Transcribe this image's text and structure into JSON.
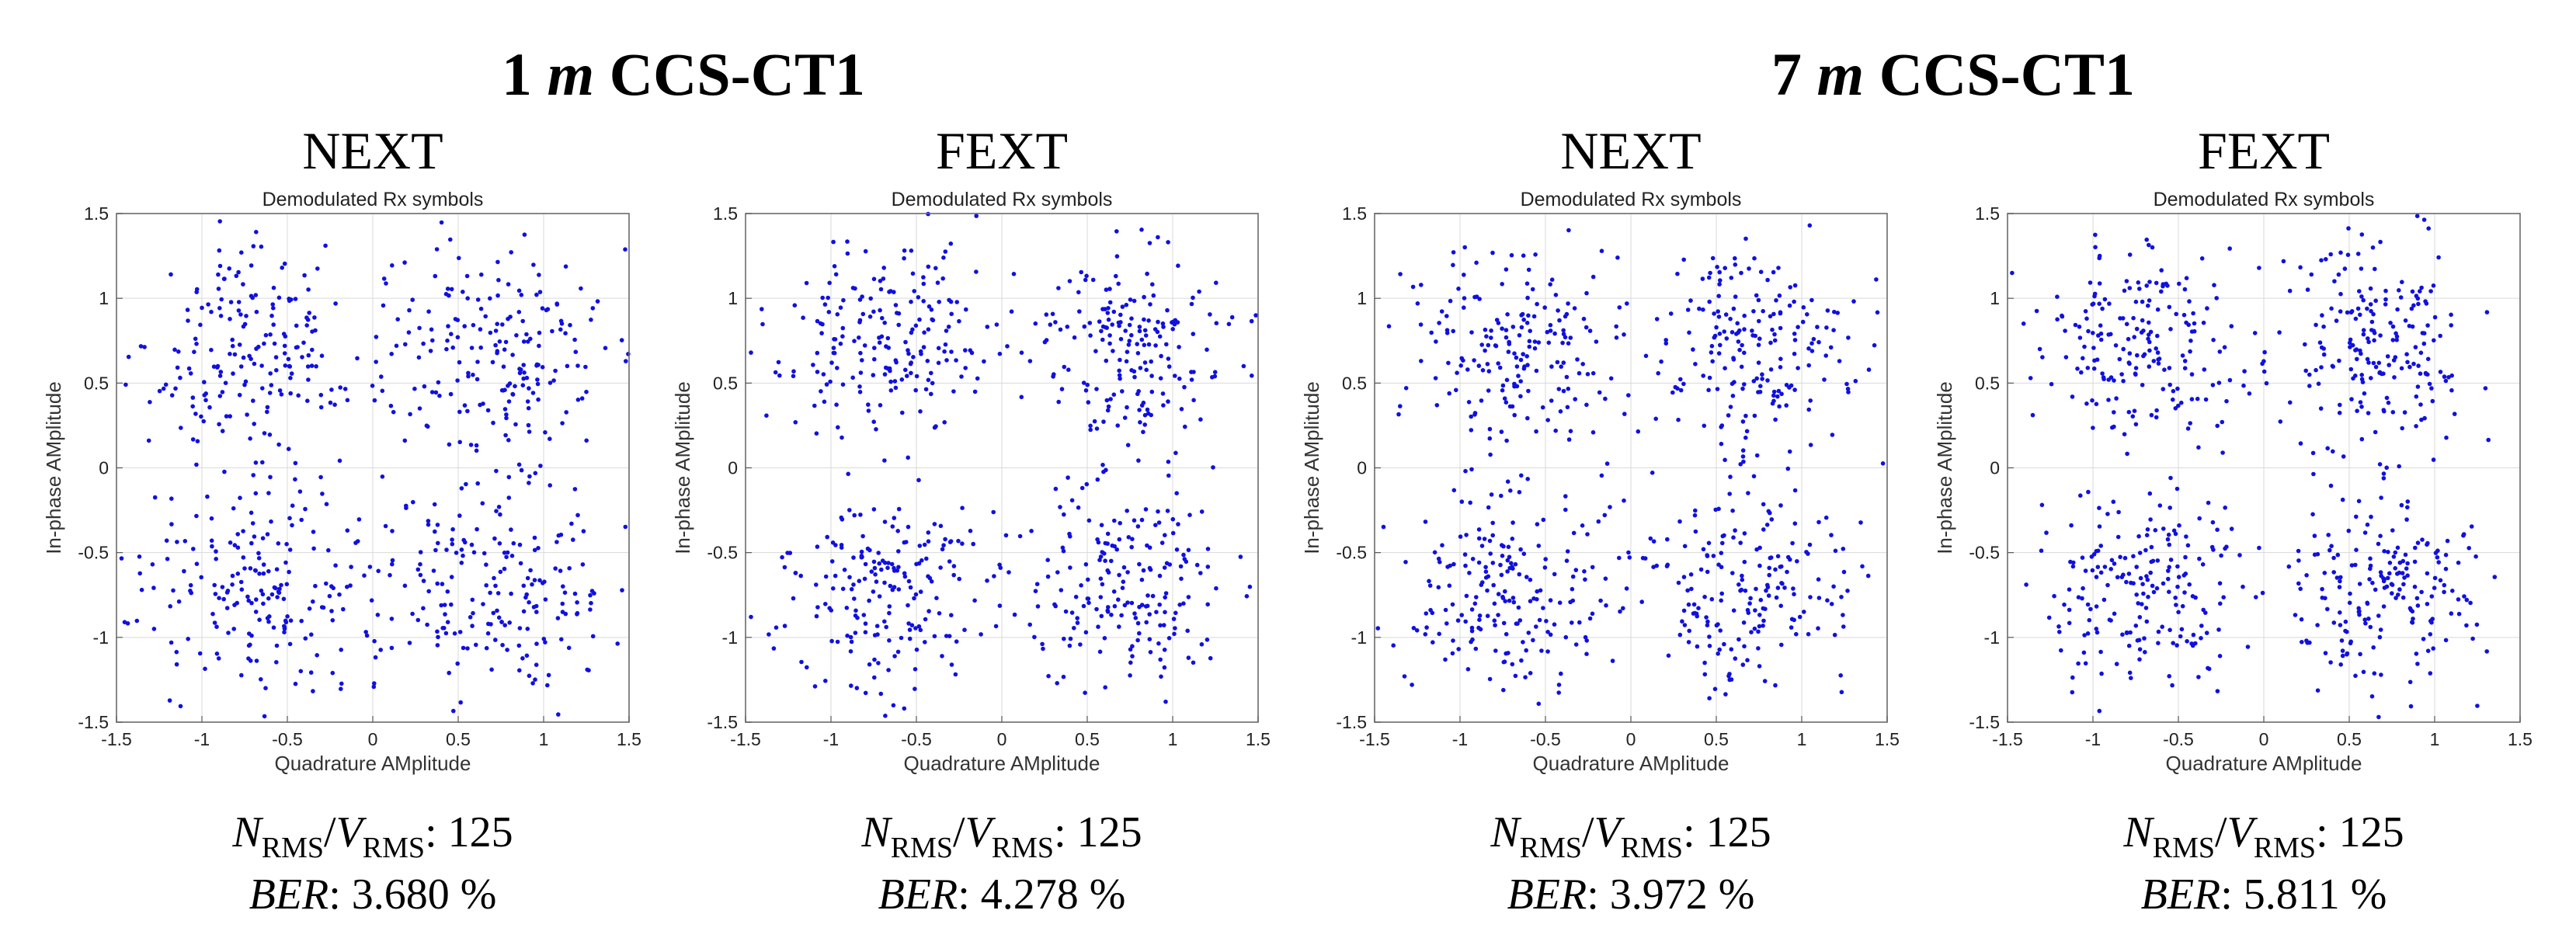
{
  "groups": [
    {
      "distance": "1",
      "unit": "m",
      "cable": "CCS-CT1"
    },
    {
      "distance": "7",
      "unit": "m",
      "cable": "CCS-CT1"
    }
  ],
  "stats_labels": {
    "n": "N",
    "v": "V",
    "sub": "RMS",
    "ber": "BER"
  },
  "colors": {
    "points": "#1010e0",
    "frame": "#6b6b6b",
    "grid": "#d9d9d9"
  },
  "chart_data": [
    {
      "type": "scatter",
      "group": "1 m CCS-CT1",
      "panel": "NEXT",
      "title": "Demodulated Rx symbols",
      "xlabel": "Quadrature AMplitude",
      "ylabel": "In-phase AMplitude",
      "xlim": [
        -1.5,
        1.5
      ],
      "ylim": [
        -1.5,
        1.5
      ],
      "xticks": [
        "-1.5",
        "-1",
        "-0.5",
        "0",
        "0.5",
        "1",
        "1.5"
      ],
      "yticks": [
        "1.5",
        "1",
        "0.5",
        "0",
        "-0.5",
        "-1",
        "-1.5"
      ],
      "grid": true,
      "clusters": [
        [
          -0.707,
          0.707
        ],
        [
          0.707,
          0.707
        ],
        [
          -0.707,
          -0.707
        ],
        [
          0.707,
          -0.707
        ]
      ],
      "spread": 0.33,
      "count": 800,
      "seed": 11,
      "nrms_vrms": "125",
      "ber": "3.680 %"
    },
    {
      "type": "scatter",
      "group": "1 m CCS-CT1",
      "panel": "FEXT",
      "title": "Demodulated Rx symbols",
      "xlabel": "Quadrature AMplitude",
      "ylabel": "In-phase AMplitude",
      "xlim": [
        -1.5,
        1.5
      ],
      "ylim": [
        -1.5,
        1.5
      ],
      "xticks": [
        "-1.5",
        "-1",
        "-0.5",
        "0",
        "0.5",
        "1",
        "1.5"
      ],
      "yticks": [
        "1.5",
        "1",
        "0.5",
        "0",
        "-0.5",
        "-1",
        "-1.5"
      ],
      "grid": true,
      "clusters": [
        [
          -0.707,
          0.707
        ],
        [
          0.707,
          0.707
        ],
        [
          -0.707,
          -0.707
        ],
        [
          0.707,
          -0.707
        ]
      ],
      "spread": 0.3,
      "count": 800,
      "seed": 23,
      "nrms_vrms": "125",
      "ber": "4.278 %"
    },
    {
      "type": "scatter",
      "group": "7 m CCS-CT1",
      "panel": "NEXT",
      "title": "Demodulated Rx symbols",
      "xlabel": "Quadrature AMplitude",
      "ylabel": "In-phase AMplitude",
      "xlim": [
        -1.5,
        1.5
      ],
      "ylim": [
        -1.5,
        1.5
      ],
      "xticks": [
        "-1.5",
        "-1",
        "-0.5",
        "0",
        "0.5",
        "1",
        "1.5"
      ],
      "yticks": [
        "1.5",
        "1",
        "0.5",
        "0",
        "-0.5",
        "-1",
        "-1.5"
      ],
      "grid": true,
      "clusters": [
        [
          -0.707,
          0.707
        ],
        [
          0.707,
          0.707
        ],
        [
          -0.707,
          -0.707
        ],
        [
          0.707,
          -0.707
        ]
      ],
      "spread": 0.3,
      "count": 800,
      "seed": 37,
      "nrms_vrms": "125",
      "ber": "3.972 %"
    },
    {
      "type": "scatter",
      "group": "7 m CCS-CT1",
      "panel": "FEXT",
      "title": "Demodulated Rx symbols",
      "xlabel": "Quadrature AMplitude",
      "ylabel": "In-phase AMplitude",
      "xlim": [
        -1.5,
        1.5
      ],
      "ylim": [
        -1.5,
        1.5
      ],
      "xticks": [
        "-1.5",
        "-1",
        "-0.5",
        "0",
        "0.5",
        "1",
        "1.5"
      ],
      "yticks": [
        "1.5",
        "1",
        "0.5",
        "0",
        "-0.5",
        "-1",
        "-1.5"
      ],
      "grid": true,
      "clusters": [
        [
          -0.707,
          0.707
        ],
        [
          0.707,
          0.707
        ],
        [
          -0.707,
          -0.707
        ],
        [
          0.707,
          -0.707
        ]
      ],
      "spread": 0.3,
      "count": 800,
      "seed": 51,
      "nrms_vrms": "125",
      "ber": "5.811 %"
    }
  ]
}
